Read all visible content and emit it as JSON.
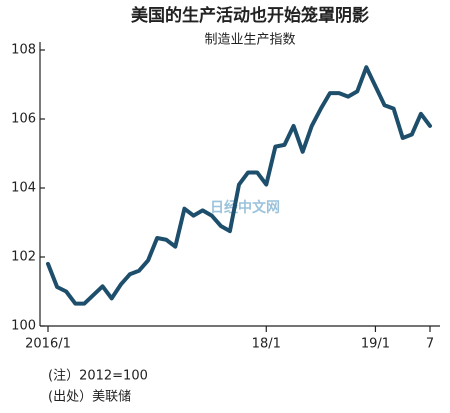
{
  "chart_data": {
    "type": "line",
    "title": "美国的生产活动也开始笼罩阴影",
    "subtitle": "制造业生产指数",
    "categories": [
      "2016/1",
      null,
      null,
      null,
      null,
      null,
      null,
      null,
      null,
      null,
      null,
      null,
      null,
      null,
      null,
      null,
      null,
      null,
      null,
      null,
      null,
      null,
      null,
      null,
      "18/1",
      null,
      null,
      null,
      null,
      null,
      null,
      null,
      null,
      null,
      null,
      null,
      "19/1",
      null,
      null,
      null,
      null,
      null,
      "7"
    ],
    "series": [
      {
        "color": "#1d4e6b",
        "values": [
          101.8,
          101.13,
          101.0,
          100.65,
          100.65,
          100.9,
          101.15,
          100.8,
          101.2,
          101.5,
          101.6,
          101.9,
          102.55,
          102.5,
          102.3,
          103.4,
          103.2,
          103.35,
          103.2,
          102.9,
          102.75,
          104.1,
          104.45,
          104.45,
          104.1,
          105.2,
          105.25,
          105.8,
          105.05,
          105.8,
          106.3,
          106.75,
          106.75,
          106.65,
          106.8,
          107.5,
          106.95,
          106.4,
          106.3,
          105.45,
          105.55,
          106.15,
          105.8
        ]
      }
    ],
    "ylim": [
      100,
      108
    ],
    "yticks": [
      100,
      102,
      104,
      106,
      108
    ],
    "notes": [
      "(注）2012=100",
      "(出处）美联储"
    ],
    "watermark": "日经中文网"
  }
}
